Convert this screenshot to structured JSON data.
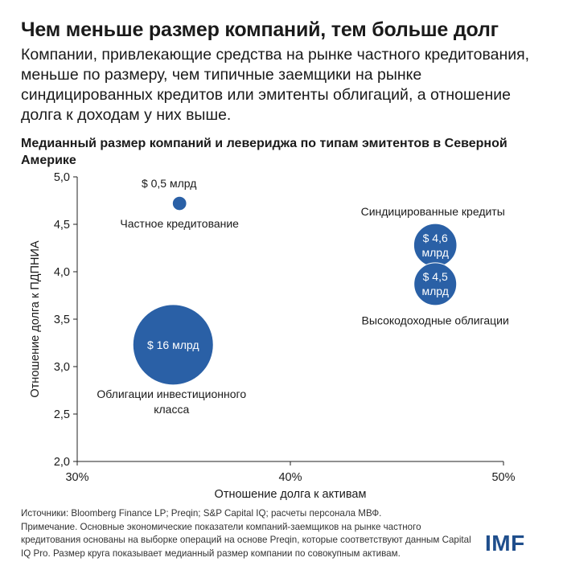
{
  "header": {
    "title": "Чем меньше размер компаний, тем больше долг",
    "subtitle": "Компании, привлекающие средства на рынке частного кредитования, меньше по размеру, чем типичные заемщики на рынке синдицированных кредитов или эмитенты облигаций, а отношение долга к доходам у них выше."
  },
  "chart_data": {
    "type": "bubble",
    "title": "Медианный размер компаний и левериджа по типам эмитентов в Северной Америке",
    "xlabel": "Отношение долга к активам",
    "ylabel": "Отношение долга к ПДПНИА",
    "xlim": [
      30,
      50
    ],
    "ylim": [
      2.0,
      5.0
    ],
    "x_ticks": [
      "30%",
      "40%",
      "50%"
    ],
    "y_ticks": [
      "2,0",
      "2,5",
      "3,0",
      "3,5",
      "4,0",
      "4,5",
      "5,0"
    ],
    "bubble_color": "#2a60a6",
    "points": [
      {
        "name": "Частное кредитование",
        "x": 34.8,
        "y": 4.72,
        "size": 0.5,
        "size_label": "$ 0,5 млрд"
      },
      {
        "name": "Облигации инвестиционного класса",
        "x": 34.5,
        "y": 3.23,
        "size": 16,
        "size_label": "$ 16 млрд"
      },
      {
        "name": "Синдицированные кредиты",
        "x": 46.8,
        "y": 4.28,
        "size": 4.6,
        "size_label": "$ 4,6 млрд"
      },
      {
        "name": "Высокодоходные облигации",
        "x": 46.8,
        "y": 3.87,
        "size": 4.5,
        "size_label": "$ 4,5 млрд"
      }
    ]
  },
  "footer": {
    "sources": "Источники: Bloomberg Finance LP; Preqin; S&P Capital IQ; расчеты персонала МВФ.",
    "note": "Примечание. Основные экономические показатели компаний-заемщиков на рынке частного кредитования основаны на выборке операций на основе Preqin, которые соответствуют данным Capital IQ Pro. Размер круга показывает медианный размер компании по совокупным активам.",
    "logo": "IMF",
    "logo_color": "#1f4e8c"
  }
}
